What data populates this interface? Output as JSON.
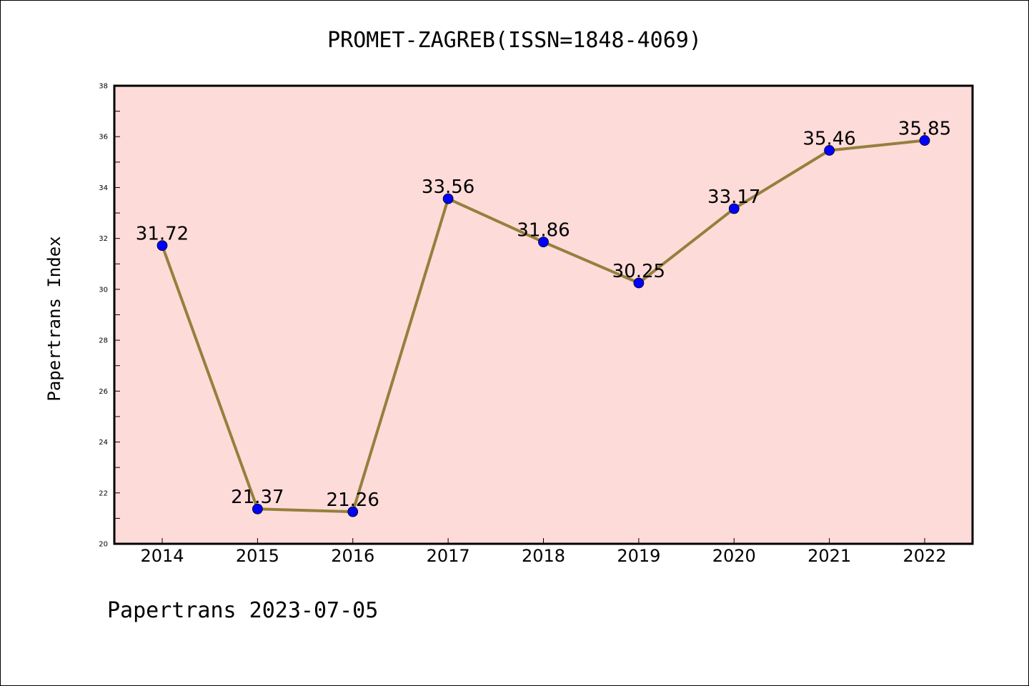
{
  "chart_data": {
    "type": "line",
    "title": "PROMET-ZAGREB(ISSN=1848-4069)",
    "ylabel": "Papertrans Index",
    "xlabel": "",
    "footer": "Papertrans 2023-07-05",
    "x": [
      "2014",
      "2015",
      "2016",
      "2017",
      "2018",
      "2019",
      "2020",
      "2021",
      "2022"
    ],
    "values": [
      31.72,
      21.37,
      21.26,
      33.56,
      31.86,
      30.25,
      33.17,
      35.46,
      35.85
    ],
    "labels": [
      "31.72",
      "21.37",
      "21.26",
      "33.56",
      "31.86",
      "30.25",
      "33.17",
      "35.46",
      "35.85"
    ],
    "ylim": [
      20,
      38
    ],
    "yticks": [
      "20",
      "22",
      "24",
      "26",
      "28",
      "30",
      "32",
      "34",
      "36",
      "38"
    ],
    "grid": false,
    "colors": {
      "plot_background": "#fddbd9",
      "line": "#94803c",
      "marker": "#0000ff"
    }
  }
}
